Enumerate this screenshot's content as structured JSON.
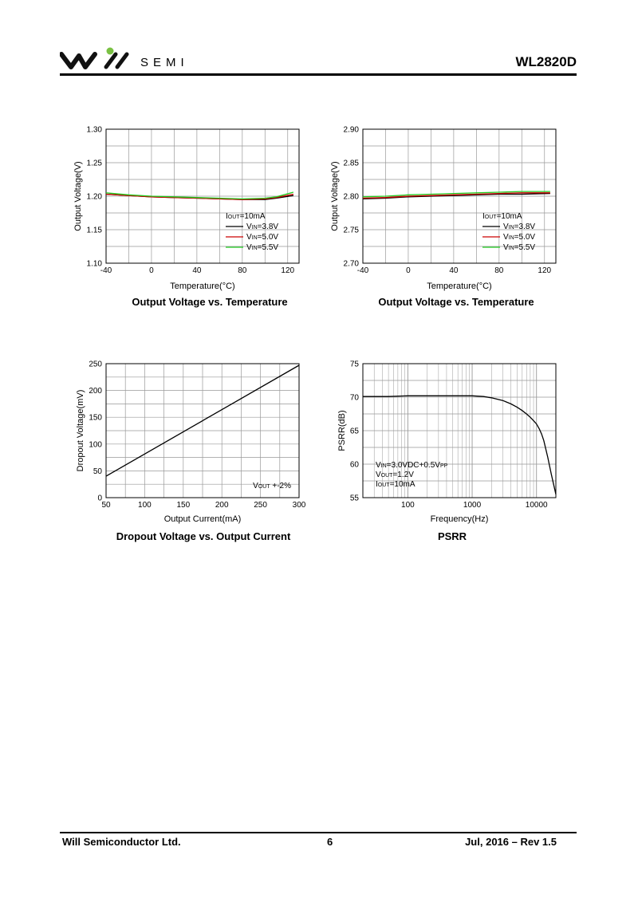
{
  "header": {
    "brand": "SEMI",
    "part_number": "WL2820D"
  },
  "footer": {
    "company": "Will Semiconductor Ltd.",
    "page": "6",
    "revision": "Jul, 2016 – Rev 1.5"
  },
  "colors": {
    "black": "#000000",
    "red": "#cc0000",
    "green": "#22cc22",
    "logo_dot": "#7ac143"
  },
  "chart_data": [
    {
      "id": "c1",
      "type": "line",
      "title": "Output Voltage vs. Temperature",
      "xlabel": "Temperature(°C)",
      "ylabel": "Output Voltage(V)",
      "xlim": [
        -40,
        130
      ],
      "ylim": [
        1.1,
        1.3
      ],
      "xticks": [
        -40,
        0,
        40,
        80,
        120
      ],
      "xtick_labels": [
        "-40",
        "0",
        "40",
        "80",
        "120"
      ],
      "yticks": [
        1.1,
        1.15,
        1.2,
        1.25,
        1.3
      ],
      "ytick_labels": [
        "1.10",
        "1.15",
        "1.20",
        "1.25",
        "1.30"
      ],
      "xgrid_step": 20,
      "ygrid_step": 0.025,
      "grid": true,
      "legend": {
        "position": "bottom-right",
        "header": "IOUT=10mA"
      },
      "series": [
        {
          "name": "VIN=3.8V",
          "color": "#000000",
          "x": [
            -40,
            -20,
            0,
            20,
            40,
            60,
            80,
            100,
            110,
            125
          ],
          "y": [
            1.203,
            1.201,
            1.199,
            1.198,
            1.197,
            1.196,
            1.195,
            1.195,
            1.197,
            1.201
          ]
        },
        {
          "name": "VIN=5.0V",
          "color": "#cc0000",
          "x": [
            -40,
            -20,
            0,
            20,
            40,
            60,
            80,
            100,
            110,
            125
          ],
          "y": [
            1.203,
            1.201,
            1.199,
            1.198,
            1.197,
            1.196,
            1.195,
            1.196,
            1.198,
            1.203
          ]
        },
        {
          "name": "VIN=5.5V",
          "color": "#22cc22",
          "x": [
            -40,
            -20,
            0,
            20,
            40,
            60,
            80,
            100,
            110,
            125
          ],
          "y": [
            1.205,
            1.202,
            1.2,
            1.199,
            1.198,
            1.197,
            1.196,
            1.197,
            1.199,
            1.206
          ]
        }
      ]
    },
    {
      "id": "c2",
      "type": "line",
      "title": "Output Voltage vs. Temperature",
      "xlabel": "Temperature(°C)",
      "ylabel": "Output Voltage(V)",
      "xlim": [
        -40,
        130
      ],
      "ylim": [
        2.7,
        2.9
      ],
      "xticks": [
        -40,
        0,
        40,
        80,
        120
      ],
      "xtick_labels": [
        "-40",
        "0",
        "40",
        "80",
        "120"
      ],
      "yticks": [
        2.7,
        2.75,
        2.8,
        2.85,
        2.9
      ],
      "ytick_labels": [
        "2.70",
        "2.75",
        "2.80",
        "2.85",
        "2.90"
      ],
      "xgrid_step": 20,
      "ygrid_step": 0.025,
      "grid": true,
      "legend": {
        "position": "bottom-right",
        "header": "IOUT=10mA"
      },
      "series": [
        {
          "name": "VIN=3.8V",
          "color": "#000000",
          "x": [
            -40,
            -20,
            0,
            20,
            40,
            60,
            80,
            100,
            125
          ],
          "y": [
            2.796,
            2.797,
            2.799,
            2.8,
            2.801,
            2.802,
            2.803,
            2.803,
            2.804
          ]
        },
        {
          "name": "VIN=5.0V",
          "color": "#cc0000",
          "x": [
            -40,
            -20,
            0,
            20,
            40,
            60,
            80,
            100,
            125
          ],
          "y": [
            2.797,
            2.798,
            2.8,
            2.801,
            2.802,
            2.803,
            2.804,
            2.805,
            2.805
          ]
        },
        {
          "name": "VIN=5.5V",
          "color": "#22cc22",
          "x": [
            -40,
            -20,
            0,
            20,
            40,
            60,
            80,
            100,
            125
          ],
          "y": [
            2.799,
            2.8,
            2.802,
            2.803,
            2.804,
            2.805,
            2.806,
            2.807,
            2.807
          ]
        }
      ]
    },
    {
      "id": "c3",
      "type": "line",
      "title": "Dropout Voltage vs. Output Current",
      "xlabel": "Output Current(mA)",
      "ylabel": "Dropout Voltage(mV)",
      "xlim": [
        50,
        300
      ],
      "ylim": [
        0,
        250
      ],
      "xticks": [
        50,
        100,
        150,
        200,
        250,
        300
      ],
      "xtick_labels": [
        "50",
        "100",
        "150",
        "200",
        "250",
        "300"
      ],
      "yticks": [
        0,
        50,
        100,
        150,
        200,
        250
      ],
      "ytick_labels": [
        "0",
        "50",
        "100",
        "150",
        "200",
        "250"
      ],
      "xgrid_step": 25,
      "ygrid_step": 25,
      "grid": true,
      "legend": {
        "position": "bottom-right",
        "header": "VOUT +-2%"
      },
      "series": [
        {
          "color": "#000000",
          "x": [
            50,
            300
          ],
          "y": [
            40,
            247
          ]
        }
      ]
    },
    {
      "id": "c4",
      "type": "line",
      "title": "PSRR",
      "xlabel": "Frequency(Hz)",
      "ylabel": "PSRR(dB)",
      "xscale": "log",
      "xlim": [
        20,
        20000
      ],
      "ylim": [
        55,
        75
      ],
      "xticks": [
        100,
        1000,
        10000
      ],
      "xtick_labels": [
        "100",
        "1000",
        "10000"
      ],
      "yticks": [
        55,
        60,
        65,
        70,
        75
      ],
      "ytick_labels": [
        "55",
        "60",
        "65",
        "70",
        "75"
      ],
      "ygrid_step": 2.5,
      "grid": true,
      "legend": {
        "position": "bottom-left",
        "lines": [
          "VIN=3.0VDC+0.5VPP",
          "VOUT=1.2V",
          "IOUT=10mA"
        ]
      },
      "series": [
        {
          "color": "#000000",
          "x": [
            20,
            50,
            100,
            200,
            500,
            1000,
            1500,
            2000,
            3000,
            4000,
            5000,
            6000,
            7000,
            8000,
            9000,
            10000,
            11000,
            12000,
            13000,
            15000,
            17000,
            20000
          ],
          "y": [
            70.1,
            70.1,
            70.2,
            70.2,
            70.2,
            70.2,
            70.1,
            69.9,
            69.5,
            69.0,
            68.5,
            68.0,
            67.5,
            67.0,
            66.5,
            66.0,
            65.3,
            64.5,
            63.5,
            61.0,
            58.5,
            55.5
          ]
        }
      ]
    }
  ]
}
